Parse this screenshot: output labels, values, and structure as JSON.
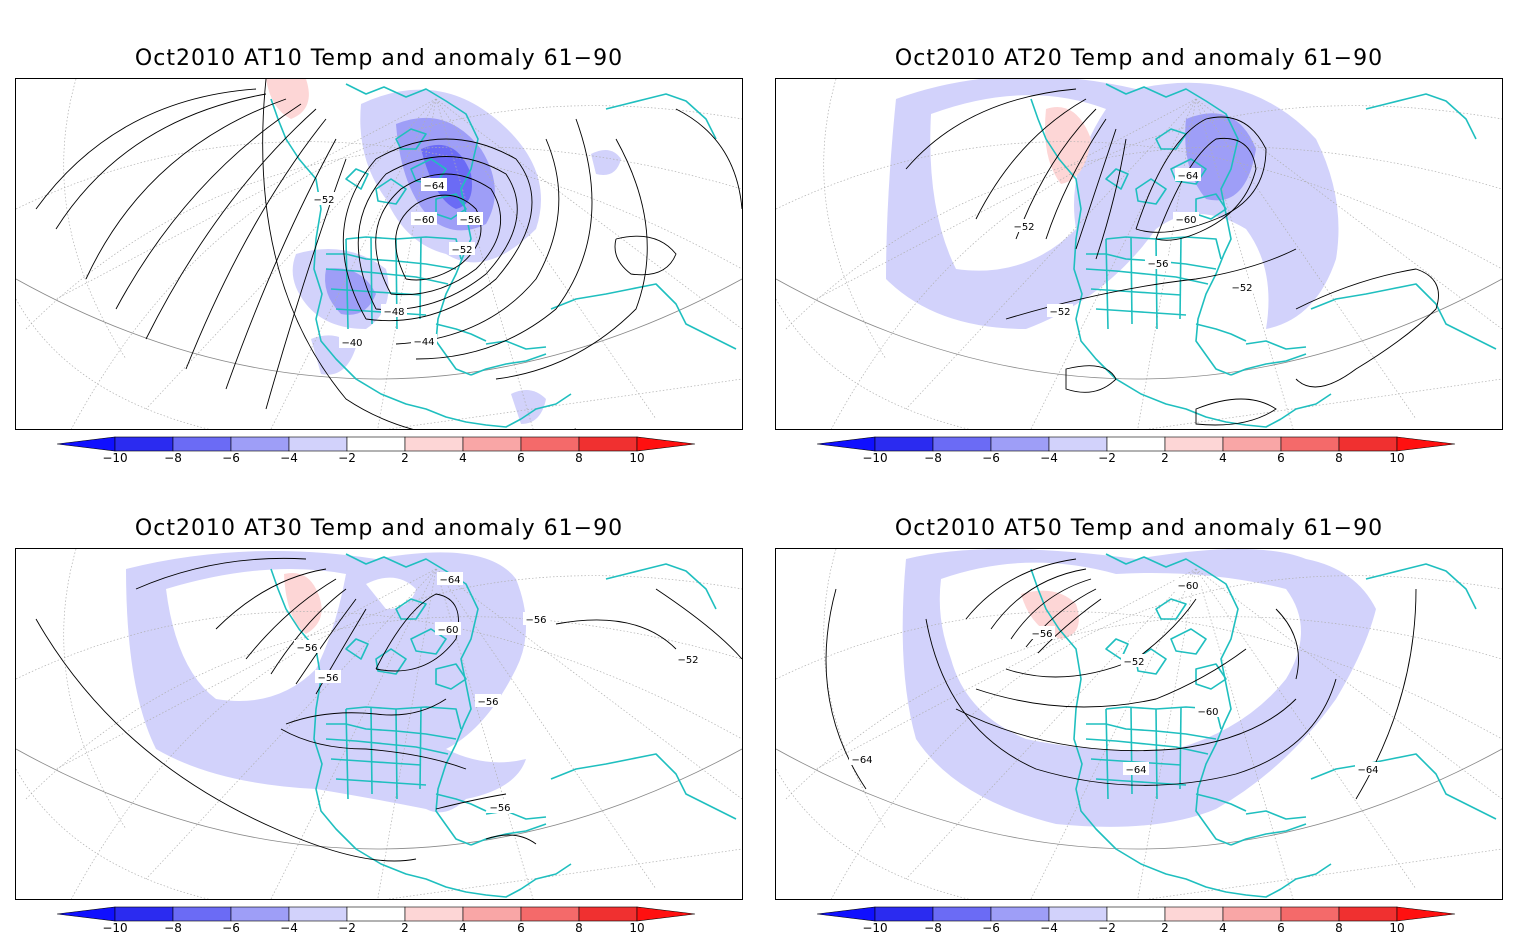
{
  "panels": [
    {
      "title": "Oct2010 AT10 Temp and anomaly 61−90",
      "contour_labels": [
        "−64",
        "−60",
        "−56",
        "−52",
        "−52",
        "−48",
        "−44",
        "−40"
      ]
    },
    {
      "title": "Oct2010 AT20 Temp and anomaly 61−90",
      "contour_labels": [
        "−64",
        "−60",
        "−56",
        "−52",
        "−52",
        "−52"
      ]
    },
    {
      "title": "Oct2010 AT30 Temp and anomaly 61−90",
      "contour_labels": [
        "−64",
        "−60",
        "−56",
        "−56",
        "−56",
        "−56",
        "−56",
        "−52"
      ]
    },
    {
      "title": "Oct2010 AT50 Temp and anomaly 61−90",
      "contour_labels": [
        "−60",
        "−56",
        "−52",
        "−60",
        "−64",
        "−64",
        "−64"
      ]
    }
  ],
  "colorbar": {
    "labels": [
      "−10",
      "−8",
      "−6",
      "−4",
      "−2",
      "2",
      "4",
      "6",
      "8",
      "10"
    ],
    "colors": [
      "#2b2bf0",
      "#6b6bf5",
      "#9e9ef7",
      "#d2d2fb",
      "#ffffff",
      "#fdd6d6",
      "#f9a6a6",
      "#f46a6a",
      "#f03030"
    ]
  },
  "colors": {
    "coastline": "#1fbfbf",
    "contour": "#000000",
    "graticule": "#b0b0b0"
  }
}
